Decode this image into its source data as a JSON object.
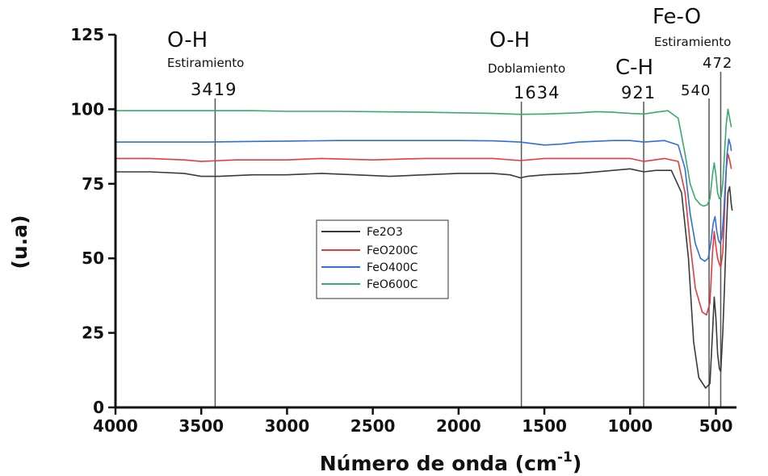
{
  "chart_data": {
    "type": "line",
    "title": "",
    "xlabel": "Número de onda (cm",
    "xlabel_sup": "-1",
    "xlabel_close": ")",
    "ylabel": "(u.a)",
    "xlim": [
      4000,
      380
    ],
    "ylim": [
      0,
      125
    ],
    "x_ticks": [
      "4000",
      "3500",
      "3000",
      "2500",
      "2000",
      "1500",
      "1000",
      "500"
    ],
    "y_ticks": [
      "0",
      "25",
      "50",
      "75",
      "100",
      "125"
    ],
    "grid": false,
    "legend_position": "center",
    "series": [
      {
        "name": "Fe2O3",
        "color": "#3a3a3a",
        "points": [
          [
            4000,
            79
          ],
          [
            3800,
            79
          ],
          [
            3600,
            78.5
          ],
          [
            3500,
            77.5
          ],
          [
            3400,
            77.5
          ],
          [
            3200,
            78
          ],
          [
            3000,
            78
          ],
          [
            2800,
            78.5
          ],
          [
            2600,
            78
          ],
          [
            2400,
            77.5
          ],
          [
            2200,
            78
          ],
          [
            2000,
            78.5
          ],
          [
            1800,
            78.5
          ],
          [
            1700,
            78
          ],
          [
            1640,
            77
          ],
          [
            1600,
            77.5
          ],
          [
            1500,
            78
          ],
          [
            1300,
            78.5
          ],
          [
            1100,
            79.5
          ],
          [
            1000,
            80
          ],
          [
            920,
            79
          ],
          [
            850,
            79.5
          ],
          [
            760,
            79.5
          ],
          [
            700,
            72
          ],
          [
            660,
            50
          ],
          [
            630,
            22
          ],
          [
            600,
            10
          ],
          [
            560,
            6.5
          ],
          [
            535,
            8
          ],
          [
            520,
            25
          ],
          [
            510,
            37
          ],
          [
            500,
            30
          ],
          [
            490,
            18
          ],
          [
            480,
            13
          ],
          [
            472,
            12
          ],
          [
            460,
            25
          ],
          [
            450,
            40
          ],
          [
            440,
            58
          ],
          [
            430,
            72
          ],
          [
            420,
            74
          ],
          [
            410,
            68
          ],
          [
            405,
            66
          ]
        ]
      },
      {
        "name": "FeO200C",
        "color": "#e53b3b",
        "points": [
          [
            4000,
            83.5
          ],
          [
            3800,
            83.5
          ],
          [
            3600,
            83
          ],
          [
            3500,
            82.5
          ],
          [
            3300,
            83
          ],
          [
            3000,
            83
          ],
          [
            2800,
            83.5
          ],
          [
            2500,
            83
          ],
          [
            2200,
            83.5
          ],
          [
            2000,
            83.5
          ],
          [
            1800,
            83.5
          ],
          [
            1640,
            82.8
          ],
          [
            1500,
            83.5
          ],
          [
            1300,
            83.5
          ],
          [
            1100,
            83.5
          ],
          [
            1000,
            83.5
          ],
          [
            920,
            82.5
          ],
          [
            800,
            83.5
          ],
          [
            720,
            82.5
          ],
          [
            680,
            72
          ],
          [
            650,
            55
          ],
          [
            620,
            40
          ],
          [
            580,
            32
          ],
          [
            555,
            31
          ],
          [
            535,
            35
          ],
          [
            520,
            52
          ],
          [
            510,
            59
          ],
          [
            500,
            54
          ],
          [
            490,
            50
          ],
          [
            480,
            48
          ],
          [
            472,
            47
          ],
          [
            460,
            52
          ],
          [
            450,
            65
          ],
          [
            440,
            80
          ],
          [
            430,
            85
          ],
          [
            420,
            83
          ],
          [
            410,
            80
          ]
        ]
      },
      {
        "name": "FeO400C",
        "color": "#2f6fd6",
        "points": [
          [
            4000,
            89
          ],
          [
            3800,
            89
          ],
          [
            3500,
            89
          ],
          [
            3200,
            89.2
          ],
          [
            3000,
            89.3
          ],
          [
            2700,
            89.5
          ],
          [
            2500,
            89.5
          ],
          [
            2200,
            89.5
          ],
          [
            2000,
            89.5
          ],
          [
            1800,
            89.4
          ],
          [
            1640,
            89
          ],
          [
            1500,
            88
          ],
          [
            1400,
            88.3
          ],
          [
            1300,
            89
          ],
          [
            1100,
            89.5
          ],
          [
            1000,
            89.5
          ],
          [
            920,
            89
          ],
          [
            800,
            89.5
          ],
          [
            720,
            88
          ],
          [
            680,
            80
          ],
          [
            650,
            65
          ],
          [
            620,
            55
          ],
          [
            590,
            50
          ],
          [
            565,
            49
          ],
          [
            545,
            50
          ],
          [
            530,
            55
          ],
          [
            515,
            62
          ],
          [
            505,
            64
          ],
          [
            495,
            59
          ],
          [
            485,
            56
          ],
          [
            475,
            55
          ],
          [
            465,
            57
          ],
          [
            455,
            65
          ],
          [
            445,
            75
          ],
          [
            435,
            85
          ],
          [
            425,
            90
          ],
          [
            415,
            88
          ],
          [
            410,
            86
          ]
        ]
      },
      {
        "name": "FeO600C",
        "color": "#3aaa6c",
        "points": [
          [
            4000,
            99.5
          ],
          [
            3800,
            99.5
          ],
          [
            3500,
            99.5
          ],
          [
            3200,
            99.5
          ],
          [
            3000,
            99.3
          ],
          [
            2700,
            99.3
          ],
          [
            2500,
            99.2
          ],
          [
            2200,
            99
          ],
          [
            2000,
            98.8
          ],
          [
            1800,
            98.6
          ],
          [
            1640,
            98.3
          ],
          [
            1500,
            98.4
          ],
          [
            1300,
            98.8
          ],
          [
            1200,
            99.2
          ],
          [
            1100,
            99
          ],
          [
            1000,
            98.6
          ],
          [
            920,
            98.4
          ],
          [
            850,
            99
          ],
          [
            780,
            99.5
          ],
          [
            720,
            97
          ],
          [
            680,
            85
          ],
          [
            650,
            75
          ],
          [
            620,
            70
          ],
          [
            590,
            68
          ],
          [
            570,
            67.5
          ],
          [
            550,
            68
          ],
          [
            535,
            70
          ],
          [
            520,
            78
          ],
          [
            510,
            82
          ],
          [
            500,
            78
          ],
          [
            490,
            72
          ],
          [
            480,
            70
          ],
          [
            470,
            70.5
          ],
          [
            460,
            75
          ],
          [
            450,
            85
          ],
          [
            440,
            95
          ],
          [
            430,
            100
          ],
          [
            420,
            97
          ],
          [
            410,
            94
          ]
        ]
      }
    ],
    "vertical_markers": [
      {
        "value": 3419,
        "label": "3419"
      },
      {
        "value": 1634,
        "label": "1634"
      },
      {
        "value": 921,
        "label": "921"
      },
      {
        "value": 540,
        "label": "540"
      },
      {
        "value": 472,
        "label": "472"
      }
    ],
    "annotations": [
      {
        "group": "O-H",
        "subtitle": "Estiramiento"
      },
      {
        "group": "O-H",
        "subtitle": "Doblamiento"
      },
      {
        "group": "C-H",
        "subtitle": ""
      },
      {
        "group": "Fe-O",
        "subtitle": "Estiramiento"
      }
    ]
  }
}
